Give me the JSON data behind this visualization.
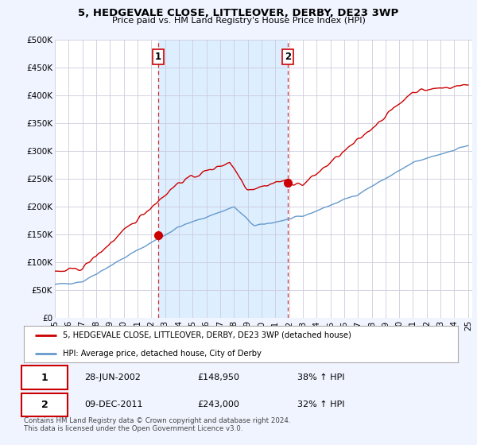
{
  "title": "5, HEDGEVALE CLOSE, LITTLEOVER, DERBY, DE23 3WP",
  "subtitle": "Price paid vs. HM Land Registry's House Price Index (HPI)",
  "ylabel_ticks": [
    "£0",
    "£50K",
    "£100K",
    "£150K",
    "£200K",
    "£250K",
    "£300K",
    "£350K",
    "£400K",
    "£450K",
    "£500K"
  ],
  "ylim": [
    0,
    500000
  ],
  "ytick_values": [
    0,
    50000,
    100000,
    150000,
    200000,
    250000,
    300000,
    350000,
    400000,
    450000,
    500000
  ],
  "x_start_year": 1995,
  "x_end_year": 2025,
  "xtick_years": [
    1995,
    1996,
    1997,
    1998,
    1999,
    2000,
    2001,
    2002,
    2003,
    2004,
    2005,
    2006,
    2007,
    2008,
    2009,
    2010,
    2011,
    2012,
    2013,
    2014,
    2015,
    2016,
    2017,
    2018,
    2019,
    2020,
    2021,
    2022,
    2023,
    2024,
    2025
  ],
  "hpi_color": "#6699cc",
  "price_color": "#cc0000",
  "purchase1_x": 2002.49,
  "purchase1_y": 148950,
  "purchase2_x": 2011.93,
  "purchase2_y": 243000,
  "shade_color": "#ddeeff",
  "legend_price_label": "5, HEDGEVALE CLOSE, LITTLEOVER, DERBY, DE23 3WP (detached house)",
  "legend_hpi_label": "HPI: Average price, detached house, City of Derby",
  "table_row1": [
    "1",
    "28-JUN-2002",
    "£148,950",
    "38% ↑ HPI"
  ],
  "table_row2": [
    "2",
    "09-DEC-2011",
    "£243,000",
    "32% ↑ HPI"
  ],
  "footnote": "Contains HM Land Registry data © Crown copyright and database right 2024.\nThis data is licensed under the Open Government Licence v3.0.",
  "bg_color": "#f0f4ff",
  "plot_bg_color": "#ffffff",
  "grid_color": "#ccccdd"
}
